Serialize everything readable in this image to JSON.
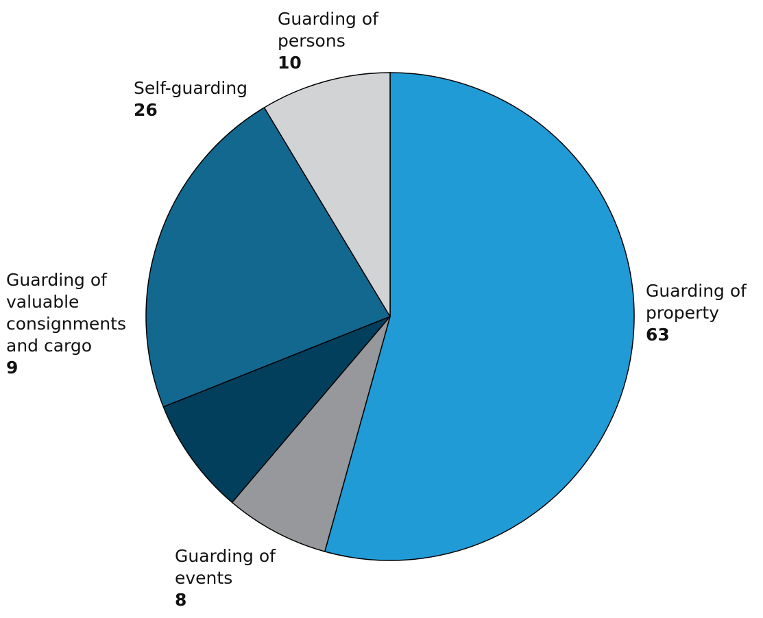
{
  "chart_data": {
    "type": "pie",
    "start_angle_deg": 0,
    "direction": "clockwise",
    "slices": [
      {
        "label": "Guarding of property",
        "value": 63,
        "color": "#219bd6"
      },
      {
        "label": "Guarding of events",
        "value": 8,
        "color": "#97989c"
      },
      {
        "label": "Guarding of valuable consignments and cargo",
        "value": 9,
        "color": "#023f5d"
      },
      {
        "label": "Self-guarding",
        "value": 26,
        "color": "#136890"
      },
      {
        "label": "Guarding of persons",
        "value": 10,
        "color": "#d2d3d5"
      }
    ],
    "labels": {
      "property": {
        "lines": [
          "Guarding of",
          "property"
        ],
        "value": "63"
      },
      "events": {
        "lines": [
          "Guarding of",
          "events"
        ],
        "value": "8"
      },
      "cargo": {
        "lines": [
          "Guarding of",
          "valuable",
          "consignments",
          "and cargo"
        ],
        "value": "9"
      },
      "self": {
        "lines": [
          "Self-guarding"
        ],
        "value": "26"
      },
      "persons": {
        "lines": [
          "Guarding of",
          "persons"
        ],
        "value": "10"
      }
    }
  }
}
